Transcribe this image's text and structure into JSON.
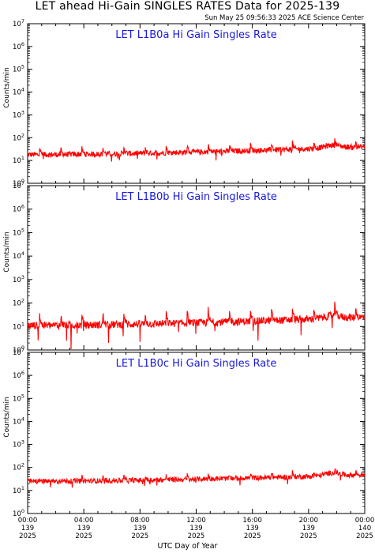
{
  "title": "LET ahead Hi-Gain SINGLES RATES Data for 2025-139",
  "timestamp": "Sun May 25 09:56:33 2025 ACE Science Center",
  "x_axis_label": "UTC Day of Year",
  "colors": {
    "series": "#ff0000",
    "panel_title": "#1a1adb",
    "axis": "#000000"
  },
  "chart_data": [
    {
      "type": "line",
      "title": "LET L1B0a Hi Gain Singles Rate",
      "ylabel": "Counts/min",
      "yscale": "log",
      "ylim": [
        1,
        10000000
      ],
      "y_tick_labels": [
        "10^0",
        "10^1",
        "10^2",
        "10^3",
        "10^4",
        "10^5",
        "10^6",
        "10^7"
      ],
      "x_unit": "hours of day 139",
      "xlim": [
        0,
        24
      ],
      "baseline": {
        "start": 18,
        "end": 40,
        "noise": 0.12,
        "spike_amp": 0.35,
        "dip_depth": 0.35
      },
      "series": [
        {
          "values_desc": "",
          "color": "#ff0000"
        }
      ]
    },
    {
      "type": "line",
      "title": "LET L1B0b Hi Gain Singles Rate",
      "ylabel": "Counts/min",
      "yscale": "log",
      "ylim": [
        1,
        10000000
      ],
      "y_tick_labels": [
        "10^0",
        "10^1",
        "10^2",
        "10^3",
        "10^4",
        "10^5",
        "10^6",
        "10^7"
      ],
      "x_unit": "hours of day 139",
      "xlim": [
        0,
        24
      ],
      "baseline": {
        "start": 11,
        "end": 25,
        "noise": 0.16,
        "spike_amp": 0.55,
        "dip_depth": 0.9
      },
      "series": [
        {
          "values_desc": "",
          "color": "#ff0000"
        }
      ]
    },
    {
      "type": "line",
      "title": "LET L1B0c Hi Gain Singles Rate",
      "ylabel": "Counts/min",
      "yscale": "log",
      "ylim": [
        1,
        10000000
      ],
      "y_tick_labels": [
        "10^0",
        "10^1",
        "10^2",
        "10^3",
        "10^4",
        "10^5",
        "10^6",
        "10^7"
      ],
      "x_unit": "hours of day 139",
      "xlim": [
        0,
        24
      ],
      "baseline": {
        "start": 25,
        "end": 48,
        "noise": 0.11,
        "spike_amp": 0.2,
        "dip_depth": 0.3
      },
      "series": [
        {
          "values_desc": "",
          "color": "#ff0000"
        }
      ]
    }
  ],
  "x_ticks": [
    {
      "time": "00:00",
      "day": "139",
      "year": "2025"
    },
    {
      "time": "04:00",
      "day": "139",
      "year": "2025"
    },
    {
      "time": "08:00",
      "day": "139",
      "year": "2025"
    },
    {
      "time": "12:00",
      "day": "139",
      "year": "2025"
    },
    {
      "time": "16:00",
      "day": "139",
      "year": "2025"
    },
    {
      "time": "20:00",
      "day": "139",
      "year": "2025"
    },
    {
      "time": "00:00",
      "day": "140",
      "year": "2025"
    }
  ]
}
